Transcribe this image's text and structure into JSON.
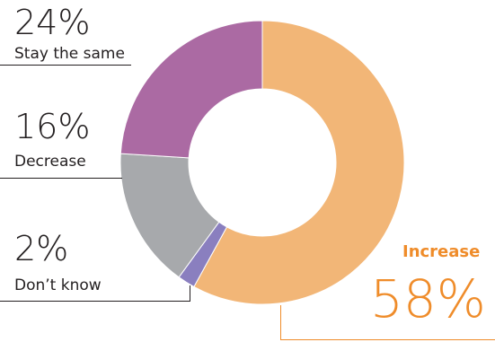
{
  "chart_data": {
    "type": "pie",
    "variant": "donut",
    "title": "",
    "series": [
      {
        "label": "Increase",
        "value": 58,
        "pct_text": "58%",
        "color": "#f2b677"
      },
      {
        "label": "Don’t know",
        "value": 2,
        "pct_text": "2%",
        "color": "#8a7fbf"
      },
      {
        "label": "Decrease",
        "value": 16,
        "pct_text": "16%",
        "color": "#a7a9ac"
      },
      {
        "label": "Stay the same",
        "value": 24,
        "pct_text": "24%",
        "color": "#ab6aa3"
      }
    ],
    "start_angle": "12 o'clock",
    "direction": "clockwise",
    "highlight_text_color": "#ef8c2a"
  }
}
